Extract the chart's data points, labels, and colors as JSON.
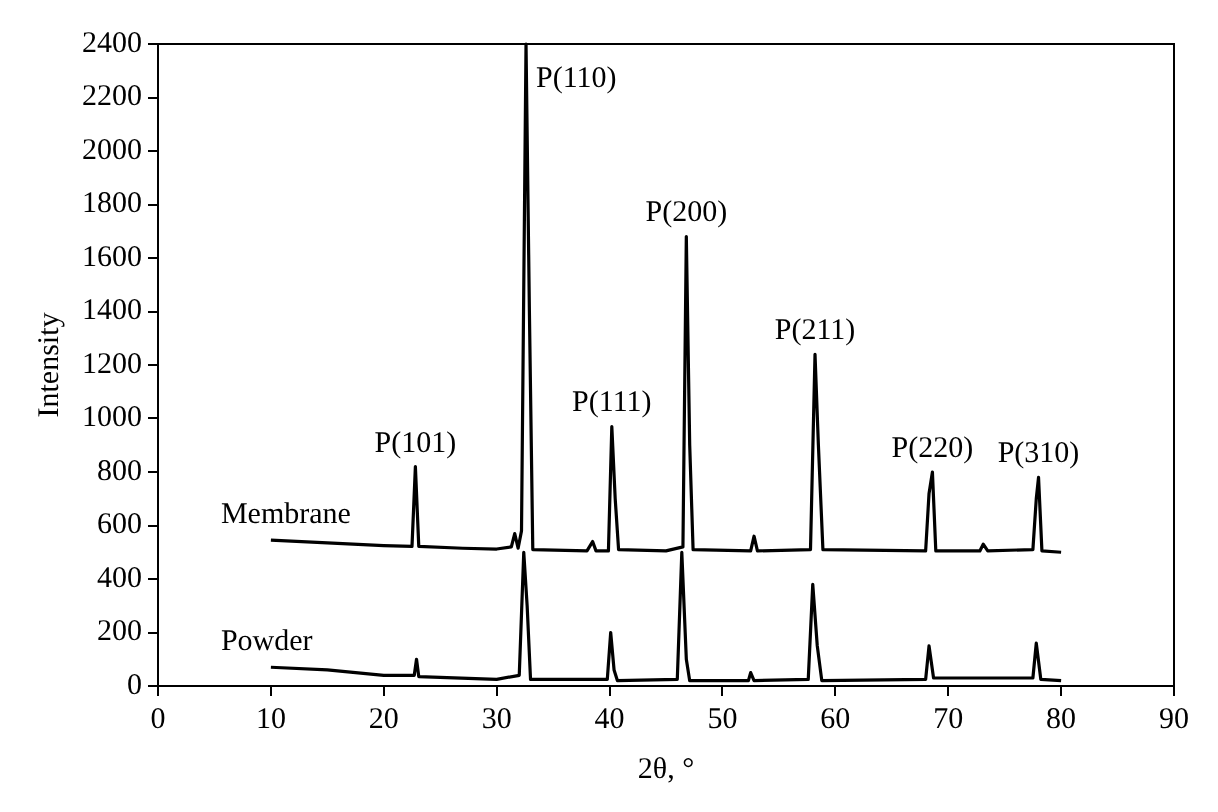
{
  "chart_data": {
    "type": "line",
    "xlabel": "2θ, °",
    "ylabel": "Intensity",
    "xlim": [
      0,
      90
    ],
    "xticks": [
      0,
      10,
      20,
      30,
      40,
      50,
      60,
      70,
      80,
      90
    ],
    "ylim": [
      0,
      2400
    ],
    "yticks": [
      0,
      200,
      400,
      600,
      800,
      1000,
      1200,
      1400,
      1600,
      1800,
      2000,
      2200,
      2400
    ],
    "grid": false,
    "legend": false,
    "marker": "none",
    "line_style": "solid",
    "series": [
      {
        "name": "Membrane",
        "color": "#000000",
        "x": [
          10,
          15,
          20,
          22.5,
          22.8,
          23.1,
          27,
          30,
          31.3,
          31.6,
          31.9,
          32.2,
          32.6,
          32.9,
          33.2,
          38,
          38.5,
          38.8,
          39.9,
          40.2,
          40.5,
          40.8,
          45,
          46.5,
          46.8,
          47.1,
          47.4,
          52.5,
          52.8,
          53.1,
          57.8,
          58.2,
          58.5,
          58.9,
          68,
          68.3,
          68.6,
          68.9,
          72.8,
          73.1,
          73.5,
          77.5,
          77.8,
          78,
          78.3,
          80
        ],
        "values": [
          545,
          535,
          525,
          522,
          820,
          522,
          515,
          512,
          520,
          570,
          515,
          580,
          2400,
          1400,
          510,
          505,
          540,
          505,
          505,
          970,
          700,
          510,
          505,
          520,
          1680,
          900,
          510,
          505,
          560,
          505,
          510,
          1240,
          900,
          510,
          505,
          720,
          800,
          505,
          505,
          530,
          505,
          510,
          700,
          780,
          505,
          500
        ]
      },
      {
        "name": "Powder",
        "color": "#000000",
        "x": [
          10,
          15,
          20,
          22.7,
          22.9,
          23.1,
          30,
          32,
          32.4,
          32.7,
          33,
          39.8,
          40.1,
          40.4,
          40.7,
          46,
          46.4,
          46.8,
          47.1,
          52.3,
          52.5,
          52.8,
          57.6,
          58,
          58.4,
          58.8,
          68,
          68.3,
          68.7,
          73,
          77.5,
          77.8,
          78.2,
          80
        ],
        "values": [
          70,
          60,
          40,
          40,
          100,
          35,
          25,
          40,
          500,
          300,
          25,
          25,
          200,
          60,
          20,
          25,
          500,
          100,
          20,
          20,
          50,
          20,
          25,
          380,
          150,
          20,
          25,
          150,
          30,
          30,
          30,
          160,
          25,
          20
        ]
      }
    ],
    "annotations": [
      {
        "text": "P(101)",
        "x": 22.8,
        "y": 820
      },
      {
        "text": "P(110)",
        "x": 32.6,
        "y": 2400
      },
      {
        "text": "P(111)",
        "x": 40.2,
        "y": 970
      },
      {
        "text": "P(200)",
        "x": 46.8,
        "y": 1680
      },
      {
        "text": "P(211)",
        "x": 58.2,
        "y": 1240
      },
      {
        "text": "P(220)",
        "x": 68.6,
        "y": 800
      },
      {
        "text": "P(310)",
        "x": 78,
        "y": 780
      }
    ]
  }
}
